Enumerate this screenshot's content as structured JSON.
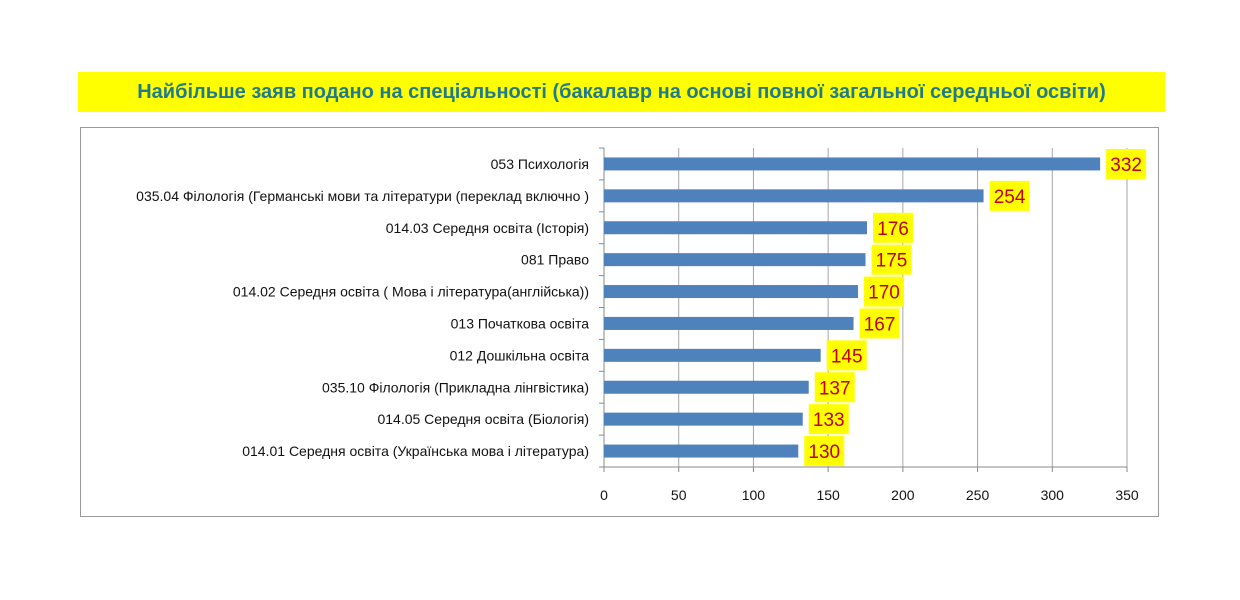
{
  "chart_data": {
    "type": "bar",
    "orientation": "horizontal",
    "title": "Найбільше заяв подано на спеціальності (бакалавр на основі повної загальної середньої освіти)",
    "categories": [
      "053 Психологія",
      "035.04 Філологія (Германські мови та літератури (переклад включно  )",
      "014.03 Середня  освіта (Історія)",
      "081 Право",
      "014.02 Середня  освіта ( Мова і література(англійська))",
      "013 Початкова освіта",
      "012 Дошкільна освіта",
      "035.10 Філологія (Прикладна лінгвістика)",
      "014.05 Середня  освіта (Біологія)",
      "014.01 Середня  освіта (Українська мова і література)"
    ],
    "values": [
      332,
      254,
      176,
      175,
      170,
      167,
      145,
      137,
      133,
      130
    ],
    "xlim": [
      0,
      350
    ],
    "xticks": [
      "0",
      "50",
      "100",
      "150",
      "200",
      "250",
      "300",
      "350"
    ],
    "grid": true,
    "legend": "none",
    "colors": {
      "bar": "#4f81bd",
      "label_bg": "#ffff00",
      "label_text": "#c00000",
      "title_bg": "#ffff00",
      "title_text": "#1f7a8c"
    }
  }
}
